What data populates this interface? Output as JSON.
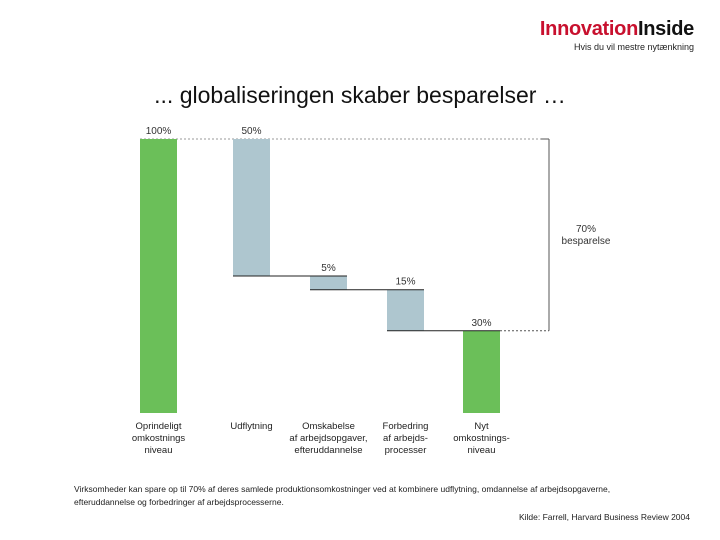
{
  "header": {
    "logo_part1": "Innovation",
    "logo_part2": "Inside",
    "tagline": "Hvis du vil mestre nytænkning"
  },
  "slide": {
    "title": "... globaliseringen skaber besparelser …"
  },
  "chart_data": {
    "type": "bar",
    "subtype": "waterfall",
    "ylim": [
      0,
      100
    ],
    "categories": [
      [
        "Oprindeligt",
        "omkostnings",
        "niveau"
      ],
      [
        "Udflytning"
      ],
      [
        "Omskabelse",
        "af arbejdsopgaver,",
        "efteruddannelse"
      ],
      [
        "Forbedring",
        "af arbejds-",
        "processer"
      ],
      [
        "Nyt",
        "omkostnings-",
        "niveau"
      ]
    ],
    "bars": [
      {
        "label": "100%",
        "start": 0,
        "end": 100,
        "kind": "total",
        "color": "#6bbf59"
      },
      {
        "label": "50%",
        "start": 50,
        "end": 100,
        "kind": "decrease",
        "color": "#aec6cf"
      },
      {
        "label": "5%",
        "start": 45,
        "end": 50,
        "kind": "decrease",
        "color": "#aec6cf"
      },
      {
        "label": "15%",
        "start": 30,
        "end": 45,
        "kind": "decrease",
        "color": "#aec6cf"
      },
      {
        "label": "30%",
        "start": 0,
        "end": 30,
        "kind": "total",
        "color": "#6bbf59"
      }
    ],
    "annotation": {
      "lines": [
        "70%",
        "besparelse"
      ],
      "from": 30,
      "to": 100
    },
    "reference_line": {
      "value": 100,
      "style": "dashed"
    },
    "xlabel": "",
    "ylabel": "",
    "grid": false
  },
  "footer": {
    "note": "Virksomheder kan spare op til 70% af deres samlede produktionsomkostninger ved at kombinere udflytning, omdannelse af arbejdsopgaverne, efteruddannelse og forbedringer af arbejdsprocesserne.",
    "source": "Kilde: Farrell, Harvard Business Review 2004"
  }
}
